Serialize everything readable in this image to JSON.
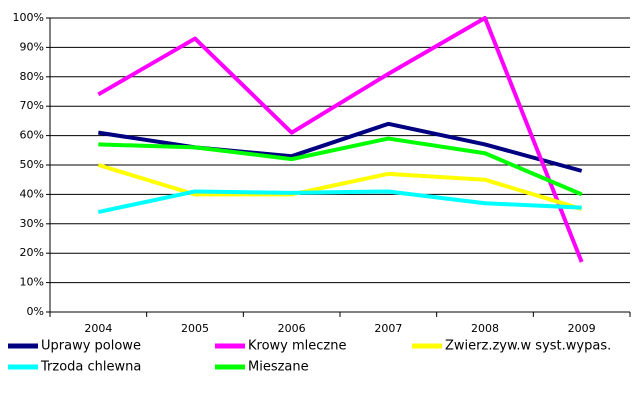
{
  "chart_data": {
    "type": "line",
    "categories": [
      "2004",
      "2005",
      "2006",
      "2007",
      "2008",
      "2009"
    ],
    "series": [
      {
        "name": "Uprawy polowe",
        "color": "#000080",
        "values": [
          61,
          56,
          53,
          64,
          57,
          48
        ]
      },
      {
        "name": "Krowy mleczne",
        "color": "#ff00ff",
        "values": [
          74,
          93,
          61,
          81,
          100,
          17
        ]
      },
      {
        "name": "Zwierz.zyw.w syst.wypas.",
        "color": "#ffff00",
        "values": [
          50,
          40,
          40,
          47,
          45,
          35
        ]
      },
      {
        "name": "Trzoda chlewna",
        "color": "#00ffff",
        "values": [
          34,
          41,
          40.5,
          41,
          37,
          35.5
        ]
      },
      {
        "name": "Mieszane",
        "color": "#00ff00",
        "values": [
          57,
          56,
          52,
          59,
          54,
          40
        ]
      }
    ],
    "ylim": [
      0,
      100
    ],
    "yticks": [
      {
        "value": 0,
        "label": "0%"
      },
      {
        "value": 10,
        "label": "10%"
      },
      {
        "value": 20,
        "label": "20%"
      },
      {
        "value": 30,
        "label": "30%"
      },
      {
        "value": 40,
        "label": "40%"
      },
      {
        "value": 50,
        "label": "50%"
      },
      {
        "value": 60,
        "label": "60%"
      },
      {
        "value": 70,
        "label": "70%"
      },
      {
        "value": 80,
        "label": "80%"
      },
      {
        "value": 90,
        "label": "90%"
      },
      {
        "value": 100,
        "label": "100%"
      }
    ],
    "grid": true
  }
}
